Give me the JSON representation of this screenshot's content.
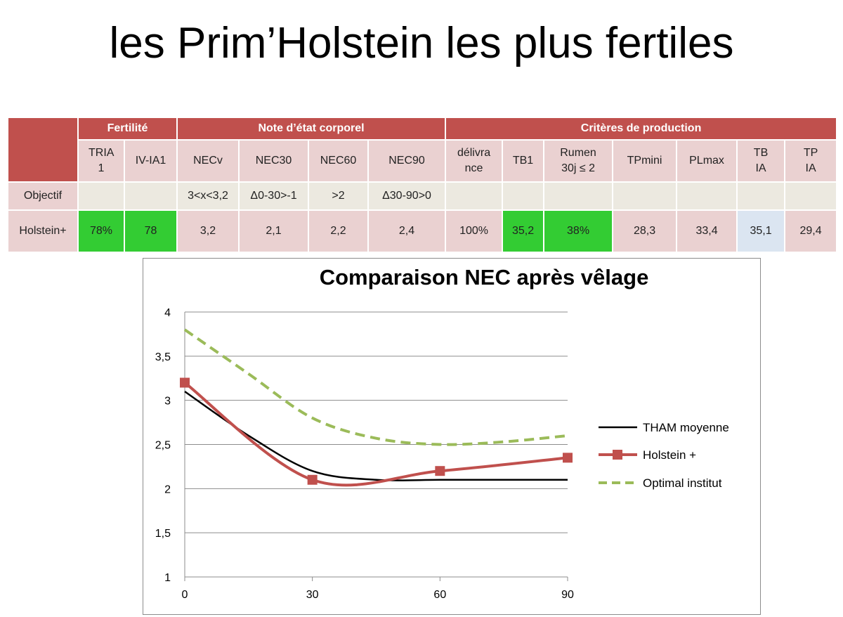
{
  "page": {
    "title": "les Prim’Holstein les plus fertiles"
  },
  "table": {
    "groups": [
      "Fertilité",
      "Note d’état corporel",
      "Critères de production"
    ],
    "columns": [
      "TRIA 1",
      "IV-IA1",
      "NECv",
      "NEC30",
      "NEC60",
      "NEC90",
      "délivra nce",
      "TB1",
      "Rumen 30j ≤ 2",
      "TPmini",
      "PLmax",
      "TB IA",
      "TP IA"
    ],
    "rows": [
      {
        "label": "Objectif",
        "cells": [
          "",
          "",
          "3<x<3,2",
          "Δ0-30>-1",
          ">2",
          "Δ30-90>0",
          "",
          "",
          "",
          "",
          "",
          "",
          ""
        ]
      },
      {
        "label": "Holstein+",
        "cells": [
          "78%",
          "78",
          "3,2",
          "2,1",
          "2,2",
          "2,4",
          "100%",
          "35,2",
          "38%",
          "28,3",
          "33,4",
          "35,1",
          "29,4"
        ],
        "highlight": [
          "green",
          "green",
          "",
          "",
          "",
          "",
          "",
          "green",
          "green",
          "",
          "",
          "blue",
          ""
        ]
      }
    ],
    "colors": {
      "header": "#c0504d",
      "row": "#ead1d1",
      "objectif_row": "#ece9e0",
      "good": "#33cc33",
      "blue": "#dbe5f1"
    }
  },
  "chart_data": {
    "type": "line",
    "title": "Comparaison NEC après vêlage",
    "xlabel": "",
    "ylabel": "",
    "xlim": [
      0,
      90
    ],
    "ylim": [
      1,
      4
    ],
    "x_ticks": [
      "0",
      "30",
      "60",
      "90"
    ],
    "y_ticks": [
      "1",
      "1,5",
      "2",
      "2,5",
      "3",
      "3,5",
      "4"
    ],
    "grid": "horizontal",
    "legend_position": "right",
    "series": [
      {
        "name": "THAM moyenne",
        "color": "#000000",
        "style": "solid-smooth",
        "points": [
          [
            0,
            3.1
          ],
          [
            15,
            2.6
          ],
          [
            30,
            2.2
          ],
          [
            45,
            2.1
          ],
          [
            60,
            2.1
          ],
          [
            75,
            2.1
          ],
          [
            90,
            2.1
          ]
        ]
      },
      {
        "name": "Holstein +",
        "color": "#c0504d",
        "style": "solid-markers",
        "points": [
          [
            0,
            3.2
          ],
          [
            30,
            2.1
          ],
          [
            60,
            2.2
          ],
          [
            90,
            2.35
          ]
        ]
      },
      {
        "name": "Optimal institut",
        "color": "#9bbb59",
        "style": "dashed",
        "points": [
          [
            0,
            3.8
          ],
          [
            15,
            3.3
          ],
          [
            30,
            2.8
          ],
          [
            45,
            2.57
          ],
          [
            60,
            2.5
          ],
          [
            75,
            2.53
          ],
          [
            90,
            2.6
          ]
        ]
      }
    ]
  }
}
